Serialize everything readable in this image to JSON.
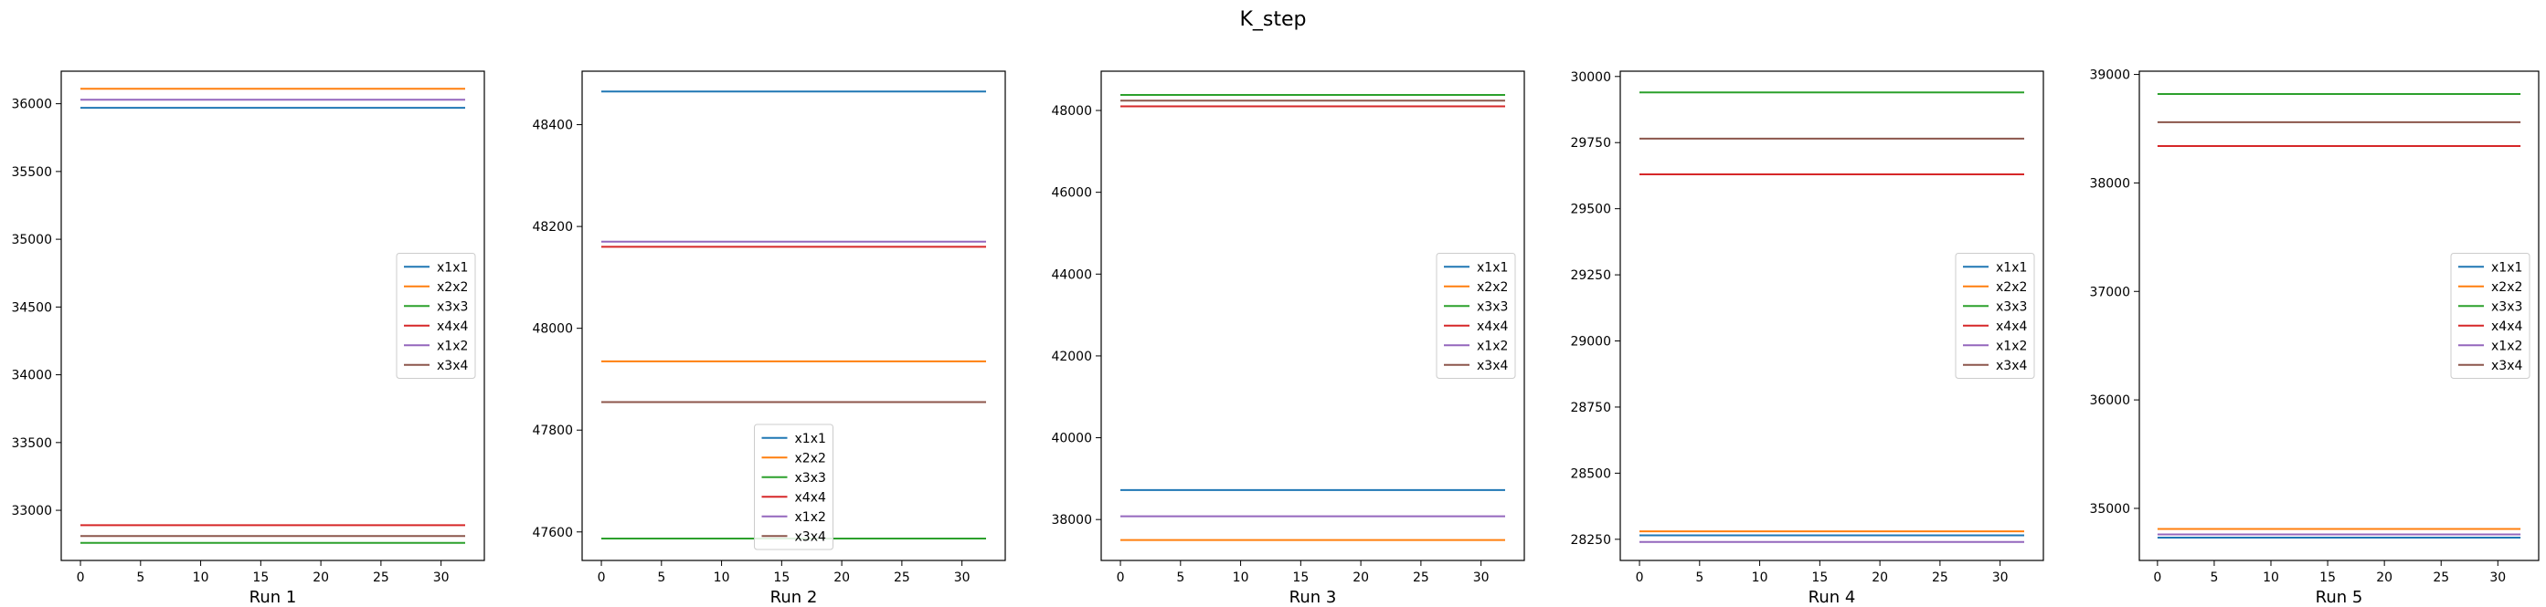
{
  "figure": {
    "title": "K_step"
  },
  "colors": {
    "x1x1": "#1f77b4",
    "x2x2": "#ff7f0e",
    "x3x3": "#2ca02c",
    "x4x4": "#d62728",
    "x1x2": "#9467bd",
    "x3x4": "#8c564b"
  },
  "chart_data": [
    {
      "type": "line",
      "xlabel": "Run 1",
      "x": [
        0,
        32
      ],
      "xlim": [
        -1.6,
        33.6
      ],
      "xticks": [
        0,
        5,
        10,
        15,
        20,
        25,
        30
      ],
      "ylim": [
        32630,
        36240
      ],
      "yticks": [
        33000,
        33500,
        34000,
        34500,
        35000,
        35500,
        36000
      ],
      "legend": {
        "placement": "center-right",
        "entries": [
          "x1x1",
          "x2x2",
          "x3x3",
          "x4x4",
          "x1x2",
          "x3x4"
        ]
      },
      "series": [
        {
          "name": "x1x1",
          "values": [
            35970,
            35970
          ]
        },
        {
          "name": "x2x2",
          "values": [
            36110,
            36110
          ]
        },
        {
          "name": "x3x3",
          "values": [
            32760,
            32760
          ]
        },
        {
          "name": "x4x4",
          "values": [
            32890,
            32890
          ]
        },
        {
          "name": "x1x2",
          "values": [
            36030,
            36030
          ]
        },
        {
          "name": "x3x4",
          "values": [
            32810,
            32810
          ]
        }
      ]
    },
    {
      "type": "line",
      "xlabel": "Run 2",
      "x": [
        0,
        32
      ],
      "xlim": [
        -1.6,
        33.6
      ],
      "xticks": [
        0,
        5,
        10,
        15,
        20,
        25,
        30
      ],
      "ylim": [
        47544,
        48505
      ],
      "yticks": [
        47600,
        47800,
        48000,
        48200,
        48400
      ],
      "legend": {
        "placement": "lower-center",
        "entries": [
          "x1x1",
          "x2x2",
          "x3x3",
          "x4x4",
          "x1x2",
          "x3x4"
        ]
      },
      "series": [
        {
          "name": "x1x1",
          "values": [
            48465,
            48465
          ]
        },
        {
          "name": "x2x2",
          "values": [
            47935,
            47935
          ]
        },
        {
          "name": "x3x3",
          "values": [
            47587,
            47587
          ]
        },
        {
          "name": "x4x4",
          "values": [
            48160,
            48160
          ]
        },
        {
          "name": "x1x2",
          "values": [
            48170,
            48170
          ]
        },
        {
          "name": "x3x4",
          "values": [
            47855,
            47855
          ]
        }
      ]
    },
    {
      "type": "line",
      "xlabel": "Run 3",
      "x": [
        0,
        32
      ],
      "xlim": [
        -1.6,
        33.6
      ],
      "xticks": [
        0,
        5,
        10,
        15,
        20,
        25,
        30
      ],
      "ylim": [
        37000,
        48960
      ],
      "yticks": [
        38000,
        40000,
        42000,
        44000,
        46000,
        48000
      ],
      "legend": {
        "placement": "center-right",
        "entries": [
          "x1x1",
          "x2x2",
          "x3x3",
          "x4x4",
          "x1x2",
          "x3x4"
        ]
      },
      "series": [
        {
          "name": "x1x1",
          "values": [
            38720,
            38720
          ]
        },
        {
          "name": "x2x2",
          "values": [
            37500,
            37500
          ]
        },
        {
          "name": "x3x3",
          "values": [
            48380,
            48380
          ]
        },
        {
          "name": "x4x4",
          "values": [
            48100,
            48100
          ]
        },
        {
          "name": "x1x2",
          "values": [
            38080,
            38080
          ]
        },
        {
          "name": "x3x4",
          "values": [
            48240,
            48240
          ]
        }
      ]
    },
    {
      "type": "line",
      "xlabel": "Run 4",
      "x": [
        0,
        32
      ],
      "xlim": [
        -1.6,
        33.6
      ],
      "xticks": [
        0,
        5,
        10,
        15,
        20,
        25,
        30
      ],
      "ylim": [
        28170,
        30020
      ],
      "yticks": [
        28250,
        28500,
        28750,
        29000,
        29250,
        29500,
        29750,
        30000
      ],
      "legend": {
        "placement": "center-right",
        "entries": [
          "x1x1",
          "x2x2",
          "x3x3",
          "x4x4",
          "x1x2",
          "x3x4"
        ]
      },
      "series": [
        {
          "name": "x1x1",
          "values": [
            28265,
            28265
          ]
        },
        {
          "name": "x2x2",
          "values": [
            28280,
            28280
          ]
        },
        {
          "name": "x3x3",
          "values": [
            29940,
            29940
          ]
        },
        {
          "name": "x4x4",
          "values": [
            29630,
            29630
          ]
        },
        {
          "name": "x1x2",
          "values": [
            28240,
            28240
          ]
        },
        {
          "name": "x3x4",
          "values": [
            29765,
            29765
          ]
        }
      ]
    },
    {
      "type": "line",
      "xlabel": "Run 5",
      "x": [
        0,
        32
      ],
      "xlim": [
        -1.6,
        33.6
      ],
      "xticks": [
        0,
        5,
        10,
        15,
        20,
        25,
        30
      ],
      "ylim": [
        34520,
        39030
      ],
      "yticks": [
        35000,
        36000,
        37000,
        38000,
        39000
      ],
      "legend": {
        "placement": "center-right",
        "entries": [
          "x1x1",
          "x2x2",
          "x3x3",
          "x4x4",
          "x1x2",
          "x3x4"
        ]
      },
      "series": [
        {
          "name": "x1x1",
          "values": [
            34730,
            34730
          ]
        },
        {
          "name": "x2x2",
          "values": [
            34810,
            34810
          ]
        },
        {
          "name": "x3x3",
          "values": [
            38820,
            38820
          ]
        },
        {
          "name": "x4x4",
          "values": [
            38340,
            38340
          ]
        },
        {
          "name": "x1x2",
          "values": [
            34760,
            34760
          ]
        },
        {
          "name": "x3x4",
          "values": [
            38560,
            38560
          ]
        }
      ]
    }
  ]
}
